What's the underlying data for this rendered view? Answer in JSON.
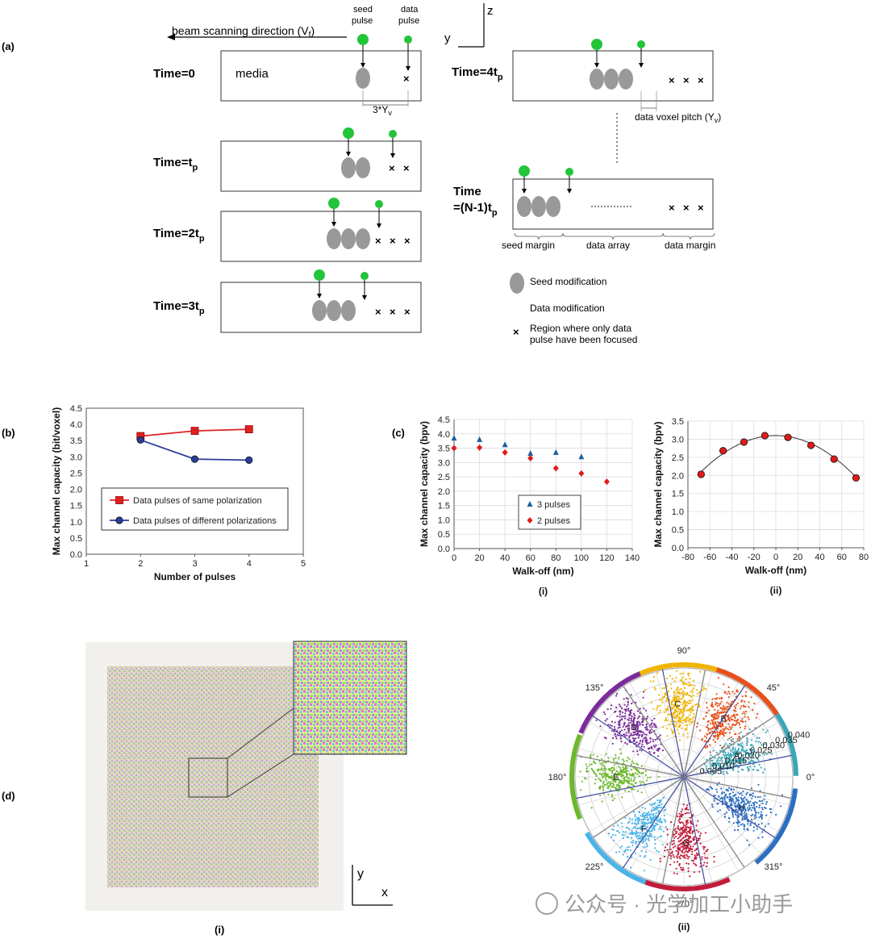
{
  "panel_a": {
    "label": "(a)",
    "beam_direction": "beam scanning direction (V",
    "beam_direction_sub": "f",
    "beam_direction_end": ")",
    "seed_pulse_label": "seed\npulse",
    "data_pulse_label": "data\npulse",
    "axis_y": "y",
    "axis_z": "z",
    "time0": "Time=0",
    "media": "media",
    "pitch_label": "3*Y",
    "pitch_sub": "v",
    "time1_main": "Time=t",
    "time1_sub": "p",
    "time2_main": "Time=2t",
    "time2_sub": "p",
    "time3_main": "Time=3t",
    "time3_sub": "p",
    "time4_main": "Time=4t",
    "time4_sub": "p",
    "voxel_pitch": "data voxel pitch (Y",
    "voxel_pitch_sub": "v",
    "voxel_pitch_end": ")",
    "timeN_line1": "Time",
    "timeN_line2": "=(N-1)t",
    "timeN_sub": "p",
    "seed_margin": "seed margin",
    "data_array": "data array",
    "data_margin": "data margin",
    "legend_seed": "Seed modification",
    "legend_data": "Data modification",
    "legend_region_1": "Region where only data",
    "legend_region_2": "pulse have been focused"
  },
  "panel_b_label": "(b)",
  "panel_c_label": "(c)",
  "panel_d_label": "(d)",
  "chart_data": [
    {
      "id": "b",
      "type": "line",
      "ylabel": "Max channel capacity (bit/voxel)",
      "xlabel": "Number of pulses",
      "xlim": [
        1,
        5
      ],
      "ylim": [
        0,
        4.5
      ],
      "xticks": [
        "1",
        "2",
        "3",
        "4",
        "5"
      ],
      "yticks": [
        "0.0",
        "0.5",
        "1.0",
        "1.5",
        "2.0",
        "2.5",
        "3.0",
        "3.5",
        "4.0",
        "4.5"
      ],
      "series": [
        {
          "name": "Data pulses of same polarization",
          "color": "#e02020",
          "marker": "square",
          "x": [
            2,
            3,
            4
          ],
          "y": [
            3.64,
            3.8,
            3.85
          ]
        },
        {
          "name": "Data pulses of different polarizations",
          "color": "#2a3d9a",
          "marker": "circle",
          "x": [
            2,
            3,
            4
          ],
          "y": [
            3.52,
            2.93,
            2.9
          ]
        }
      ]
    },
    {
      "id": "c-i",
      "type": "scatter",
      "sublabel": "(i)",
      "ylabel": "Max channel capacity (bpv)",
      "xlabel": "Walk-off (nm)",
      "xlim": [
        0,
        140
      ],
      "ylim": [
        0,
        4.5
      ],
      "xticks": [
        "0",
        "20",
        "40",
        "60",
        "80",
        "100",
        "120",
        "140"
      ],
      "yticks": [
        "0.0",
        "0.5",
        "1.0",
        "1.5",
        "2.0",
        "2.5",
        "3.0",
        "3.5",
        "4.0",
        "4.5"
      ],
      "series": [
        {
          "name": "3 pulses",
          "color": "#1f5fa0",
          "marker": "triangle",
          "x": [
            0,
            20,
            40,
            60,
            80,
            100
          ],
          "y": [
            3.85,
            3.8,
            3.62,
            3.32,
            3.35,
            3.2
          ]
        },
        {
          "name": "2 pulses",
          "color": "#e01a1a",
          "marker": "diamond",
          "x": [
            0,
            20,
            40,
            60,
            80,
            100,
            120
          ],
          "y": [
            3.5,
            3.52,
            3.35,
            3.15,
            2.8,
            2.62,
            2.33
          ]
        }
      ]
    },
    {
      "id": "c-ii",
      "type": "scatter",
      "sublabel": "(ii)",
      "ylabel": "Max channel capacity (bpv)",
      "xlabel": "Walk-off (nm)",
      "xlim": [
        -80,
        80
      ],
      "ylim": [
        0,
        3.5
      ],
      "xticks": [
        "-80",
        "-60",
        "-40",
        "-20",
        "0",
        "20",
        "40",
        "60",
        "80"
      ],
      "yticks": [
        "0.0",
        "0.5",
        "1.0",
        "1.5",
        "2.0",
        "2.5",
        "3.0",
        "3.5"
      ],
      "series": [
        {
          "name": "data",
          "color": "#e01a1a",
          "marker": "circle",
          "x": [
            -68,
            -48,
            -29,
            -10,
            11,
            32,
            53,
            73
          ],
          "y": [
            2.03,
            2.68,
            2.92,
            3.1,
            3.05,
            2.83,
            2.45,
            1.93
          ]
        }
      ],
      "fit": {
        "color": "#333333",
        "a": -0.000216,
        "x0": 0,
        "y0": 3.1
      }
    },
    {
      "id": "d-ii",
      "type": "scatter",
      "sublabel": "(ii)",
      "polar": true,
      "rmax": 0.04,
      "rticks": [
        "0.005",
        "0.010",
        "0.015",
        "0.020",
        "0.025",
        "0.030",
        "0.035",
        "0.040"
      ],
      "angle_labels": [
        "0°",
        "45°",
        "90°",
        "135°",
        "180°",
        "225°",
        "270°",
        "315°"
      ],
      "clusters": [
        {
          "label": "A",
          "angle": 22.5,
          "r": 0.021,
          "color": "#3aa7b8"
        },
        {
          "label": "B",
          "angle": 56,
          "r": 0.026,
          "color": "#e8501a"
        },
        {
          "label": "C",
          "angle": 95,
          "r": 0.027,
          "color": "#f0b400"
        },
        {
          "label": "D",
          "angle": 135,
          "r": 0.026,
          "color": "#7b2c9b"
        },
        {
          "label": "E",
          "angle": 180,
          "r": 0.025,
          "color": "#6cb82a"
        },
        {
          "label": "F",
          "angle": 232,
          "r": 0.024,
          "color": "#4ab3e8"
        },
        {
          "label": "G",
          "angle": 272,
          "r": 0.024,
          "color": "#c31b3a"
        },
        {
          "label": "H",
          "angle": 332,
          "r": 0.024,
          "color": "#2c6fc2"
        }
      ]
    }
  ],
  "panel_d": {
    "sub_i": "(i)",
    "axis_y": "y",
    "axis_x": "x"
  },
  "watermark": "公众号 · 光学加工小助手"
}
